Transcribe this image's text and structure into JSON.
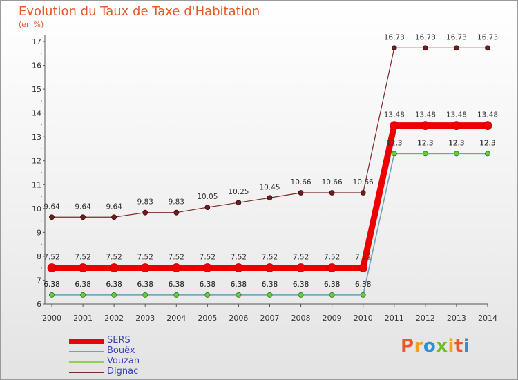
{
  "header": {
    "title": "Evolution du Taux de Taxe d'Habitation",
    "subtitle": "(en %)"
  },
  "brand": {
    "text": "Proxiti",
    "colors": [
      "#e8582a",
      "#f0a020",
      "#2f8fd6",
      "#6cbf2a",
      "#f0a020",
      "#e8582a",
      "#2f8fd6"
    ]
  },
  "chart_data": {
    "type": "line",
    "title": "Evolution du Taux de Taxe d'Habitation",
    "subtitle": "(en %)",
    "x": [
      "2000",
      "2001",
      "2002",
      "2003",
      "2004",
      "2005",
      "2006",
      "2007",
      "2008",
      "2009",
      "2010",
      "2011",
      "2012",
      "2013",
      "2014"
    ],
    "ylim": [
      6,
      17
    ],
    "yticks": [
      6,
      7,
      8,
      9,
      10,
      11,
      12,
      13,
      14,
      15,
      16,
      17
    ],
    "grid": false,
    "legend_position": "bottom-left",
    "series": [
      {
        "name": "SERS",
        "color": "#ee0000",
        "values": [
          7.52,
          7.52,
          7.52,
          7.52,
          7.52,
          7.52,
          7.52,
          7.52,
          7.52,
          7.52,
          7.52,
          13.48,
          13.48,
          13.48,
          13.48
        ],
        "labels": [
          "7.52",
          "7.52",
          "7.52",
          "7.52",
          "7.52",
          "7.52",
          "7.52",
          "7.52",
          "7.52",
          "7.52",
          "7.52",
          "13.48",
          "13.48",
          "13.48",
          "13.48"
        ]
      },
      {
        "name": "Bouëx",
        "color": "#6f9fcf",
        "values": [
          6.38,
          6.38,
          6.38,
          6.38,
          6.38,
          6.38,
          6.38,
          6.38,
          6.38,
          6.38,
          6.38,
          12.3,
          12.3,
          12.3,
          12.3
        ],
        "labels": [
          "6.38",
          "6.38",
          "6.38",
          "6.38",
          "6.38",
          "6.38",
          "6.38",
          "6.38",
          "6.38",
          "6.38",
          "6.38",
          "12.3",
          "12.3",
          "12.3",
          "12.3"
        ]
      },
      {
        "name": "Vouzan",
        "color": "#8ad34a",
        "values": [
          6.38,
          6.38,
          6.38,
          6.38,
          6.38,
          6.38,
          6.38,
          6.38,
          6.38,
          6.38,
          6.38,
          12.3,
          12.3,
          12.3,
          12.3
        ],
        "labels": [
          "6.38",
          "6.38",
          "6.38",
          "6.38",
          "6.38",
          "6.38",
          "6.38",
          "6.38",
          "6.38",
          "6.38",
          "6.38",
          "12.3",
          "12.3",
          "12.3",
          "12.3"
        ]
      },
      {
        "name": "Dignac",
        "color": "#7a2a2a",
        "values": [
          9.64,
          9.64,
          9.64,
          9.83,
          9.83,
          10.05,
          10.25,
          10.45,
          10.66,
          10.66,
          10.66,
          16.73,
          16.73,
          16.73,
          16.73
        ],
        "labels": [
          "9.64",
          "9.64",
          "9.64",
          "9.83",
          "9.83",
          "10.05",
          "10.25",
          "10.45",
          "10.66",
          "10.66",
          "10.66",
          "16.73",
          "16.73",
          "16.73",
          "16.73"
        ]
      }
    ]
  }
}
